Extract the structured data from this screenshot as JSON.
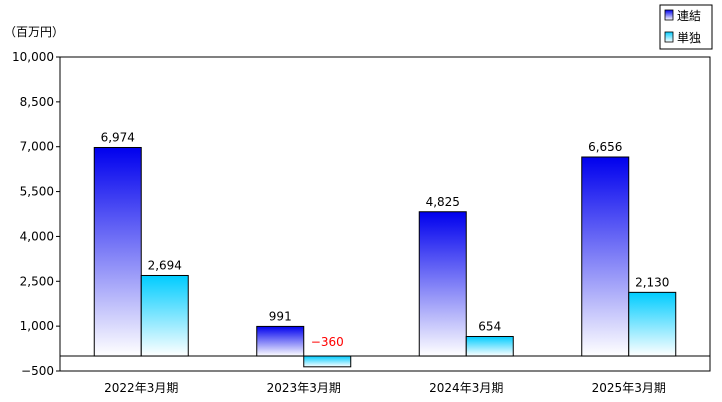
{
  "chart_data": {
    "type": "bar",
    "unit_label": "（百万円）",
    "categories": [
      "2022年3月期",
      "2023年3月期",
      "2024年3月期",
      "2025年3月期"
    ],
    "series": [
      {
        "name": "連結",
        "values": [
          6974,
          991,
          4825,
          6656
        ],
        "labels": [
          "6,974",
          "991",
          "4,825",
          "6,656"
        ]
      },
      {
        "name": "単独",
        "values": [
          2694,
          -360,
          654,
          2130
        ],
        "labels": [
          "2,694",
          "−360",
          "654",
          "2,130"
        ]
      }
    ],
    "yticks": [
      "10,000",
      "8,500",
      "7,000",
      "5,500",
      "4,000",
      "2,500",
      "1,000",
      "−500"
    ],
    "ytick_values": [
      10000,
      8500,
      7000,
      5500,
      4000,
      2500,
      1000,
      -500
    ],
    "ylim": [
      -500,
      10000
    ],
    "grid": false,
    "legend": "top-right",
    "colors": {
      "consolidated": "#1a1aff",
      "standalone": "#33ccff",
      "negative_label": "#ff0000",
      "border": "#000000"
    }
  }
}
